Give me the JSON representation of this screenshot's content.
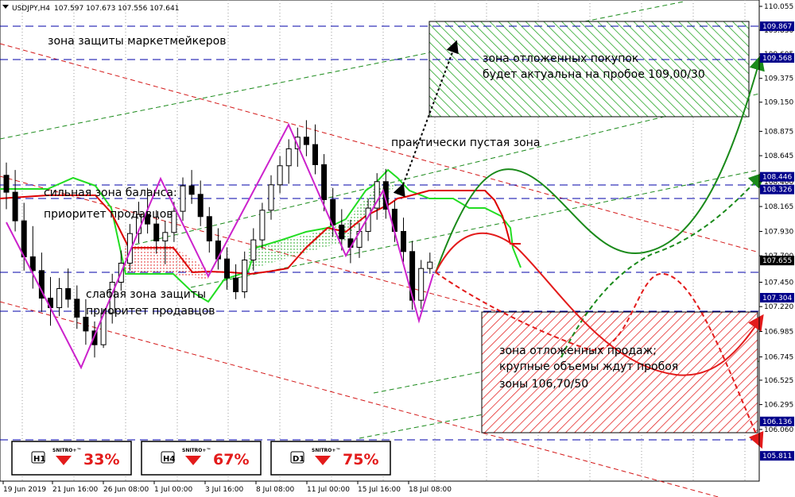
{
  "header": {
    "symbol": "USDJPY,H4",
    "ohlc": "107.597 107.673 107.556 107.641"
  },
  "annotations": {
    "mm_zone": "зона защиты маркетмейкеров",
    "buy_zone_1": "зона отложенных покупок",
    "buy_zone_2": "будет актуальна на пробое 109,00/30",
    "empty_zone": "практически пустая зона",
    "balance_1": "сильная зона баланса:",
    "balance_2": "приоритет продавцов",
    "weak_1": "слабая зона защиты",
    "weak_2": "приоритет продавцов",
    "sell_1": "зона отложенных продаж;",
    "sell_2": "крупные объемы ждут пробоя",
    "sell_3": "зоны 106,70/50"
  },
  "panels": [
    {
      "timeframe": "H1",
      "brand": "SNITRO+™",
      "percent": "33%"
    },
    {
      "timeframe": "H4",
      "brand": "SNITRO+™",
      "percent": "67%"
    },
    {
      "timeframe": "D1",
      "brand": "SNITRO+™",
      "percent": "75%"
    }
  ],
  "colors": {
    "sell_accent": "#e31b1b",
    "buy_accent": "#1aa01a",
    "level_line": "#0000aa",
    "level_box": "#00008b",
    "current_price_box": "#000000",
    "zigzag": "#cc22cc",
    "cloud_green": "#22dd22",
    "cloud_red": "#dd0000"
  },
  "chart_data": {
    "type": "candlestick",
    "symbol": "USDJPY",
    "timeframe": "H4",
    "ylim": [
      105.8,
      110.1
    ],
    "price_ticks": [
      "110.055",
      "109.830",
      "109.605",
      "109.375",
      "109.150",
      "108.875",
      "108.645",
      "108.400",
      "108.165",
      "107.930",
      "107.700",
      "107.450",
      "107.220",
      "106.985",
      "106.745",
      "106.525",
      "106.295",
      "106.060"
    ],
    "level_labels": [
      "109.867",
      "109.568",
      "108.446",
      "108.326",
      "107.655",
      "107.304",
      "106.136",
      "105.811"
    ],
    "current_price": "107.655",
    "x_ticks": [
      "19 Jun 2019",
      "21 Jun 16:00",
      "26 Jun 08:00",
      "1 Jul 00:00",
      "3 Jul 16:00",
      "8 Jul 08:00",
      "11 Jul 00:00",
      "15 Jul 16:00",
      "18 Jul 08:00"
    ],
    "candles": [
      [
        108.46,
        108.58,
        108.14,
        108.3
      ],
      [
        108.3,
        108.51,
        107.93,
        108.03
      ],
      [
        108.03,
        108.2,
        107.56,
        107.69
      ],
      [
        107.69,
        107.98,
        107.39,
        107.56
      ],
      [
        107.56,
        107.73,
        107.17,
        107.3
      ],
      [
        107.3,
        107.5,
        107.04,
        107.21
      ],
      [
        107.21,
        107.49,
        107.13,
        107.39
      ],
      [
        107.39,
        107.58,
        107.21,
        107.29
      ],
      [
        107.29,
        107.42,
        107.01,
        107.12
      ],
      [
        107.12,
        107.29,
        106.86,
        106.99
      ],
      [
        106.99,
        107.08,
        106.74,
        106.86
      ],
      [
        106.86,
        107.2,
        106.83,
        107.16
      ],
      [
        107.16,
        107.53,
        107.06,
        107.45
      ],
      [
        107.45,
        107.75,
        107.37,
        107.63
      ],
      [
        107.63,
        108.0,
        107.56,
        107.91
      ],
      [
        107.91,
        108.21,
        107.82,
        108.09
      ],
      [
        108.09,
        108.34,
        107.91,
        108.0
      ],
      [
        108.0,
        108.13,
        107.72,
        107.84
      ],
      [
        107.84,
        108.03,
        107.62,
        107.92
      ],
      [
        107.92,
        108.21,
        107.83,
        108.12
      ],
      [
        108.12,
        108.44,
        108.03,
        108.36
      ],
      [
        108.36,
        108.51,
        108.19,
        108.28
      ],
      [
        108.28,
        108.41,
        107.98,
        108.07
      ],
      [
        108.07,
        108.16,
        107.73,
        107.84
      ],
      [
        107.84,
        107.96,
        107.57,
        107.67
      ],
      [
        107.67,
        107.78,
        107.38,
        107.49
      ],
      [
        107.49,
        107.62,
        107.29,
        107.36
      ],
      [
        107.36,
        107.74,
        107.3,
        107.66
      ],
      [
        107.66,
        107.96,
        107.56,
        107.85
      ],
      [
        107.85,
        108.2,
        107.77,
        108.13
      ],
      [
        108.13,
        108.46,
        108.04,
        108.37
      ],
      [
        108.37,
        108.64,
        108.29,
        108.55
      ],
      [
        108.55,
        108.8,
        108.38,
        108.71
      ],
      [
        108.71,
        108.91,
        108.54,
        108.82
      ],
      [
        108.82,
        108.98,
        108.64,
        108.75
      ],
      [
        108.75,
        108.94,
        108.47,
        108.56
      ],
      [
        108.56,
        108.66,
        108.12,
        108.23
      ],
      [
        108.23,
        108.34,
        107.88,
        107.99
      ],
      [
        107.99,
        108.14,
        107.75,
        107.86
      ],
      [
        107.86,
        108.04,
        107.63,
        107.78
      ],
      [
        107.78,
        108.01,
        107.68,
        107.93
      ],
      [
        107.93,
        108.24,
        107.84,
        108.15
      ],
      [
        108.15,
        108.48,
        108.04,
        108.4
      ],
      [
        108.4,
        108.52,
        108.05,
        108.14
      ],
      [
        108.14,
        108.22,
        107.83,
        107.93
      ],
      [
        107.93,
        108.06,
        107.64,
        107.74
      ],
      [
        107.74,
        107.84,
        107.19,
        107.28
      ],
      [
        107.28,
        107.66,
        107.2,
        107.58
      ],
      [
        107.58,
        107.73,
        107.53,
        107.64
      ]
    ]
  }
}
